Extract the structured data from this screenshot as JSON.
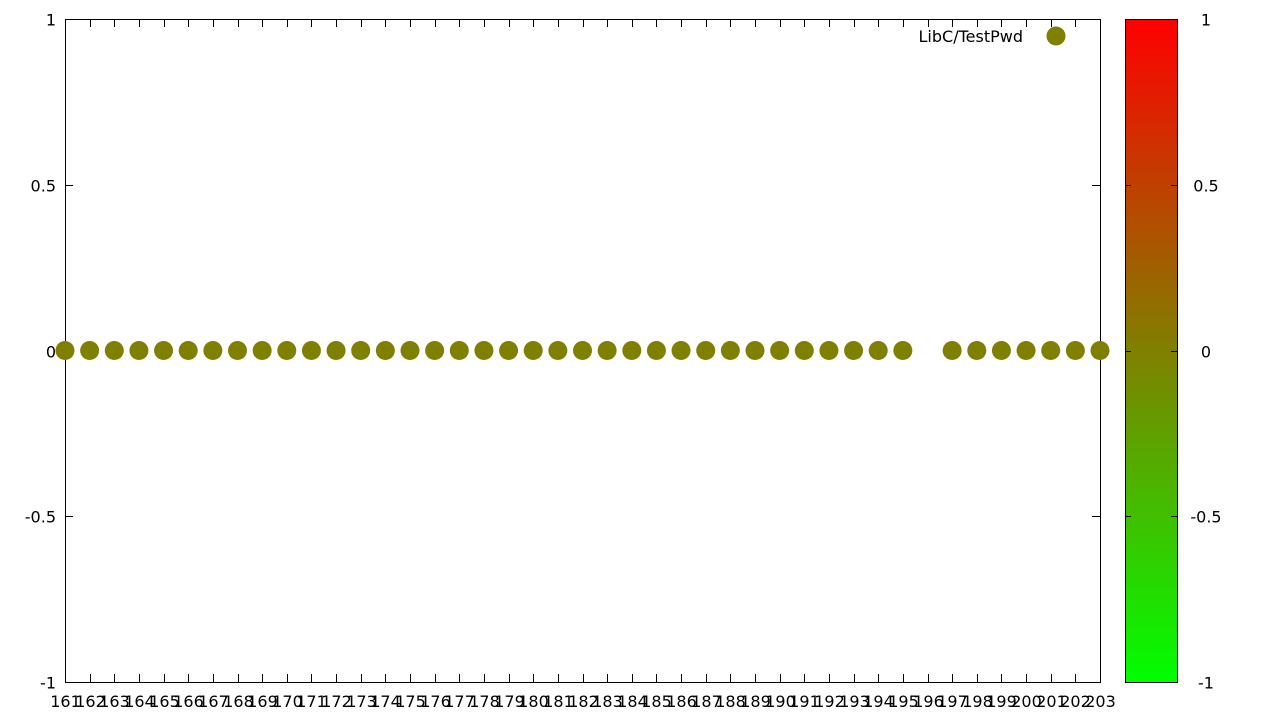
{
  "chart_data": {
    "type": "scatter",
    "x": [
      161,
      162,
      163,
      164,
      165,
      166,
      167,
      168,
      169,
      170,
      171,
      172,
      173,
      174,
      175,
      176,
      177,
      178,
      179,
      180,
      181,
      182,
      183,
      184,
      185,
      186,
      187,
      188,
      189,
      190,
      191,
      192,
      193,
      194,
      195,
      197,
      198,
      199,
      200,
      201,
      202,
      203
    ],
    "y": [
      0,
      0,
      0,
      0,
      0,
      0,
      0,
      0,
      0,
      0,
      0,
      0,
      0,
      0,
      0,
      0,
      0,
      0,
      0,
      0,
      0,
      0,
      0,
      0,
      0,
      0,
      0,
      0,
      0,
      0,
      0,
      0,
      0,
      0,
      0,
      0,
      0,
      0,
      0,
      0,
      0,
      0
    ],
    "xlim": [
      161,
      203
    ],
    "ylim": [
      -1,
      1
    ],
    "x_ticks": [
      "161",
      "162",
      "163",
      "164",
      "165",
      "166",
      "167",
      "168",
      "169",
      "170",
      "171",
      "172",
      "173",
      "174",
      "175",
      "176",
      "177",
      "178",
      "179",
      "180",
      "181",
      "182",
      "183",
      "184",
      "185",
      "186",
      "187",
      "188",
      "189",
      "190",
      "191",
      "192",
      "193",
      "194",
      "195",
      "196",
      "197",
      "198",
      "199",
      "200",
      "201",
      "202",
      "203"
    ],
    "y_ticks": [
      "1",
      "0.5",
      "0",
      "-0.5",
      "-1"
    ],
    "y_tick_values": [
      1,
      0.5,
      0,
      -0.5,
      -1
    ],
    "legend": {
      "label": "LibC/TestPwd",
      "position": "top-right"
    },
    "colorbar": {
      "range": [
        -1,
        1
      ],
      "low_color": "#00ff00",
      "mid_color": "#808000",
      "high_color": "#ff0000",
      "ticks": [
        "1",
        "0.5",
        "0",
        "-0.5",
        "-1"
      ],
      "tick_values": [
        1,
        0.5,
        0,
        -0.5,
        -1
      ]
    },
    "point_color": "#808000",
    "grid": false
  }
}
